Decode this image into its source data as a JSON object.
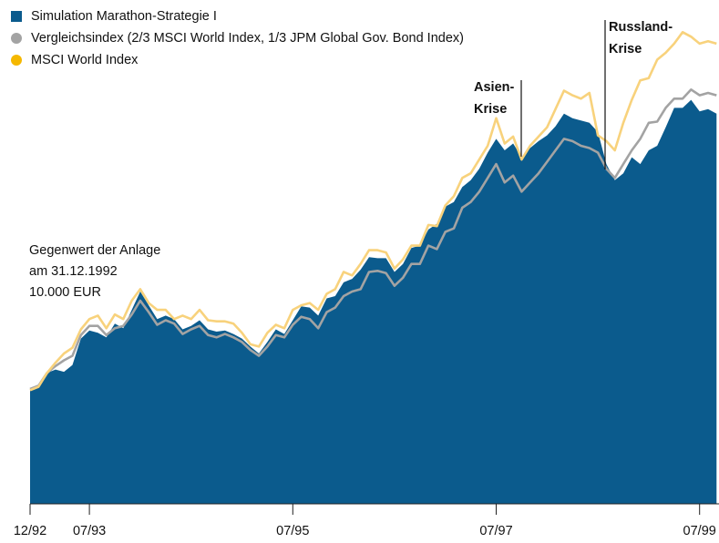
{
  "chart_data": {
    "type": "area",
    "categories": [
      "12/92",
      null,
      null,
      null,
      null,
      null,
      null,
      "07/93",
      null,
      null,
      null,
      null,
      null,
      null,
      null,
      null,
      null,
      null,
      null,
      null,
      null,
      null,
      null,
      null,
      null,
      null,
      null,
      null,
      null,
      null,
      null,
      "07/95",
      null,
      null,
      null,
      null,
      null,
      null,
      null,
      null,
      null,
      null,
      null,
      null,
      null,
      null,
      null,
      null,
      null,
      null,
      null,
      null,
      null,
      null,
      null,
      "07/97",
      null,
      null,
      null,
      null,
      null,
      null,
      null,
      null,
      null,
      null,
      null,
      null,
      null,
      null,
      null,
      null,
      null,
      null,
      null,
      null,
      null,
      null,
      null,
      "07/99",
      null,
      null
    ],
    "series": [
      {
        "name": "Simulation Marathon-Strategie I",
        "color": "#0b5b8d",
        "marker": "square",
        "values": [
          10000,
          10400,
          11400,
          11700,
          11500,
          12100,
          14400,
          15100,
          14900,
          14500,
          15700,
          15300,
          16900,
          18500,
          17300,
          16100,
          16400,
          16100,
          15200,
          15500,
          16000,
          15200,
          15000,
          15100,
          14800,
          14400,
          13700,
          13100,
          14100,
          15200,
          14800,
          16000,
          17200,
          17100,
          16400,
          17900,
          18100,
          19300,
          19600,
          20400,
          21500,
          21400,
          21400,
          20200,
          20900,
          22300,
          22500,
          23900,
          24400,
          25900,
          26300,
          27600,
          28200,
          29200,
          30600,
          31800,
          30800,
          31400,
          30200,
          31000,
          31600,
          32100,
          32900,
          34000,
          33600,
          33400,
          33200,
          32400,
          29600,
          28200,
          28800,
          30200,
          29600,
          30800,
          31200,
          32800,
          34500,
          34500,
          35200,
          34200,
          34400,
          34000
        ]
      },
      {
        "name": "Vergleichsindex (2/3 MSCI World Index, 1/3 JPM Global Gov. Bond Index)",
        "color": "#a3a3a3",
        "marker": "circle",
        "values": [
          10000,
          10300,
          11400,
          12000,
          12500,
          12900,
          14700,
          15500,
          15500,
          14700,
          15300,
          15500,
          16500,
          17700,
          16700,
          15600,
          16000,
          15700,
          14800,
          15200,
          15500,
          14700,
          14500,
          14800,
          14500,
          14100,
          13400,
          12900,
          13700,
          14700,
          14500,
          15600,
          16300,
          16100,
          15300,
          16700,
          17100,
          18100,
          18500,
          18700,
          20200,
          20300,
          20100,
          19000,
          19700,
          20900,
          20900,
          22500,
          22200,
          23700,
          24000,
          25800,
          26300,
          27200,
          28400,
          29600,
          28000,
          28600,
          27200,
          28000,
          28800,
          29800,
          30800,
          31800,
          31600,
          31200,
          31000,
          30600,
          29200,
          28400,
          29600,
          30800,
          31800,
          33200,
          33300,
          34500,
          35300,
          35300,
          36100,
          35600,
          35800,
          35600
        ]
      },
      {
        "name": "MSCI World Index",
        "color": "#f5b800",
        "line_color": "#f8d27c",
        "marker": "circle",
        "values": [
          9900,
          10200,
          11400,
          12300,
          13100,
          13600,
          15200,
          16100,
          16400,
          15300,
          16500,
          16100,
          17700,
          18700,
          17500,
          16900,
          16900,
          16100,
          16400,
          16100,
          16900,
          16000,
          15900,
          15900,
          15700,
          14900,
          13900,
          13700,
          14900,
          15600,
          15300,
          16900,
          17300,
          17500,
          16900,
          18300,
          18700,
          20200,
          19900,
          20900,
          22100,
          22100,
          21900,
          20500,
          21300,
          22500,
          22500,
          24300,
          24200,
          26000,
          26800,
          28400,
          28800,
          30000,
          31200,
          33600,
          31400,
          32000,
          30000,
          31200,
          32000,
          32800,
          34400,
          36000,
          35600,
          35300,
          35800,
          32100,
          31600,
          30800,
          33200,
          35200,
          36900,
          37100,
          38700,
          39300,
          40100,
          41100,
          40700,
          40100,
          40300,
          40100
        ]
      }
    ],
    "ylim": [
      0,
      43900
    ],
    "legend": "top-left",
    "annotations": [
      {
        "text": [
          "Gegenwert der Anlage",
          "am 31.12.1992",
          "10.000 EUR"
        ]
      },
      {
        "text": [
          "Asien-",
          "Krise"
        ]
      },
      {
        "text": [
          "Russland-",
          "Krise"
        ]
      }
    ]
  }
}
